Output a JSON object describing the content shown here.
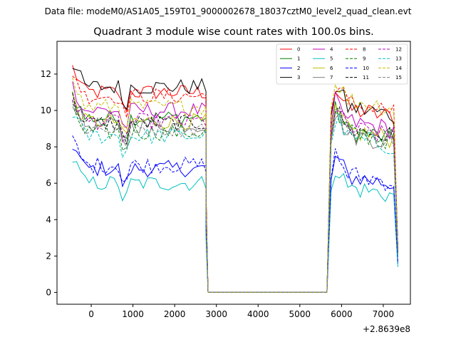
{
  "suptitle": "Data file: modeM0/AS1A05_159T01_9000002678_18037cztM0_level2_quad_clean.evt",
  "chart_data": {
    "type": "line",
    "title": "Quadrant 3 module wise count rates with 100.0s bins.",
    "xlabel": "",
    "ylabel": "",
    "x_offset_label": "+2.8639e8",
    "xlim": [
      -820,
      7650
    ],
    "ylim": [
      -0.65,
      13.8
    ],
    "xticks": [
      0,
      1000,
      2000,
      3000,
      4000,
      5000,
      6000,
      7000
    ],
    "xtick_labels": [
      "0",
      "1000",
      "2000",
      "3000",
      "4000",
      "5000",
      "6000",
      "7000"
    ],
    "yticks": [
      0,
      2,
      4,
      6,
      8,
      10,
      12
    ],
    "ytick_labels": [
      "0",
      "2",
      "4",
      "6",
      "8",
      "10",
      "12"
    ],
    "grid": false,
    "legend_position": "top-right",
    "segment1": {
      "start": -450,
      "step": 100,
      "count": 33
    },
    "drop_x": [
      2750,
      2800
    ],
    "zero_span": [
      2800,
      5650
    ],
    "rise_x": 5750,
    "segment2": {
      "start": 5850,
      "step": 100,
      "count": 15
    },
    "end_x": 7350,
    "series": [
      {
        "name": "0",
        "color": "#ff0000",
        "dashed": false,
        "base1": 11.0,
        "base2": 10.2,
        "end": 2.4
      },
      {
        "name": "1",
        "color": "#008000",
        "dashed": false,
        "base1": 9.6,
        "base2": 9.0,
        "end": 2.2
      },
      {
        "name": "2",
        "color": "#0000ff",
        "dashed": false,
        "base1": 6.8,
        "base2": 6.5,
        "end": 1.6
      },
      {
        "name": "3",
        "color": "#000000",
        "dashed": false,
        "base1": 11.3,
        "base2": 10.3,
        "end": 2.5
      },
      {
        "name": "4",
        "color": "#bf00bf",
        "dashed": false,
        "base1": 10.0,
        "base2": 9.5,
        "end": 2.3
      },
      {
        "name": "5",
        "color": "#00bfbf",
        "dashed": false,
        "base1": 6.0,
        "base2": 5.9,
        "end": 1.4
      },
      {
        "name": "6",
        "color": "#bfbf00",
        "dashed": false,
        "base1": 9.4,
        "base2": 9.0,
        "end": 2.2
      },
      {
        "name": "7",
        "color": "#808080",
        "dashed": false,
        "base1": 9.2,
        "base2": 8.8,
        "end": 2.1
      },
      {
        "name": "8",
        "color": "#ff0000",
        "dashed": true,
        "base1": 10.8,
        "base2": 10.5,
        "end": 2.4
      },
      {
        "name": "9",
        "color": "#008000",
        "dashed": true,
        "base1": 8.8,
        "base2": 8.9,
        "end": 2.0
      },
      {
        "name": "10",
        "color": "#0000ff",
        "dashed": true,
        "base1": 7.0,
        "base2": 6.6,
        "end": 1.6
      },
      {
        "name": "11",
        "color": "#000000",
        "dashed": true,
        "base1": 9.3,
        "base2": 9.1,
        "end": 2.2
      },
      {
        "name": "12",
        "color": "#bf00bf",
        "dashed": true,
        "base1": 9.4,
        "base2": 9.1,
        "end": 2.2
      },
      {
        "name": "13",
        "color": "#00bfbf",
        "dashed": true,
        "base1": 8.6,
        "base2": 8.6,
        "end": 2.0
      },
      {
        "name": "14",
        "color": "#bfbf00",
        "dashed": true,
        "base1": 10.2,
        "base2": 10.7,
        "end": 2.4
      },
      {
        "name": "15",
        "color": "#808080",
        "dashed": true,
        "base1": 9.0,
        "base2": 8.9,
        "end": 2.1
      }
    ]
  }
}
